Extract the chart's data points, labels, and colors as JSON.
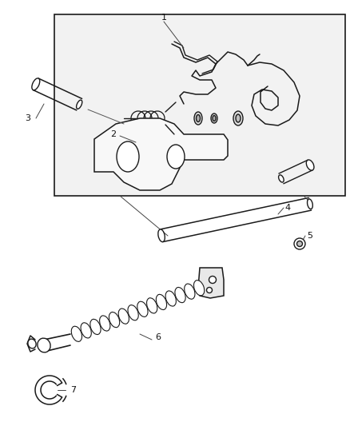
{
  "bg_color": "#ffffff",
  "line_color": "#1a1a1a",
  "box_fill": "#f0f0f0",
  "figsize": [
    4.39,
    5.33
  ],
  "dpi": 100,
  "lw": 1.0
}
